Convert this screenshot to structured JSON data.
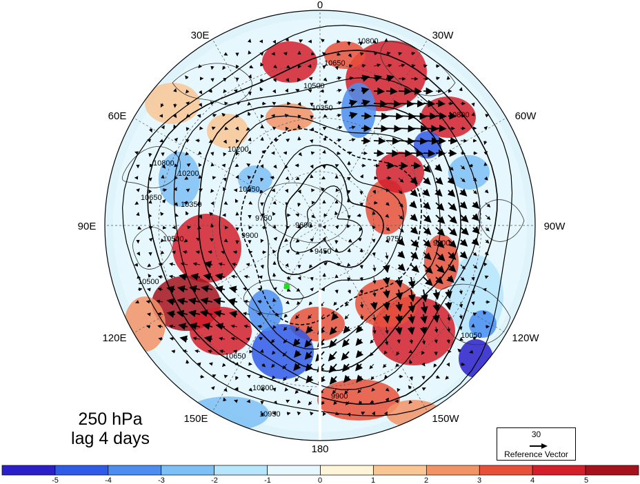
{
  "map": {
    "projection": "north-polar-stereographic",
    "longitude_labels": [
      "0",
      "30W",
      "60W",
      "90W",
      "120W",
      "150W",
      "180",
      "150E",
      "120E",
      "90E",
      "60E",
      "30E"
    ],
    "contour_labels": [
      "10800",
      "10650",
      "10500",
      "10350",
      "10200",
      "10050",
      "9900",
      "9750",
      "9600",
      "9450",
      "10950",
      "10800",
      "10650",
      "10500",
      "10350",
      "10200",
      "10800",
      "10650",
      "10500",
      "9900",
      "10800",
      "9750",
      "9900",
      "10050"
    ],
    "marker_color": "#22dd22",
    "colors": {
      "ocean_background": "#dff3fb",
      "contour": "#000000",
      "coast": "#333333",
      "grid": "#555555"
    }
  },
  "caption": {
    "level": "250 hPa",
    "lag": "lag 4 days"
  },
  "reference_vector": {
    "value": "30",
    "title": "Reference Vector"
  },
  "colorbar": {
    "ticks": [
      "-5",
      "-4",
      "-3",
      "-2",
      "-1",
      "0",
      "1",
      "2",
      "3",
      "4",
      "5"
    ],
    "colors": [
      "#2a1fc9",
      "#2f5be8",
      "#4b8ef0",
      "#7cc0f5",
      "#b6e6fb",
      "#e6f8fd",
      "#fdf5d5",
      "#f9c694",
      "#f29366",
      "#e9503a",
      "#d41f2a",
      "#a5121b"
    ]
  }
}
